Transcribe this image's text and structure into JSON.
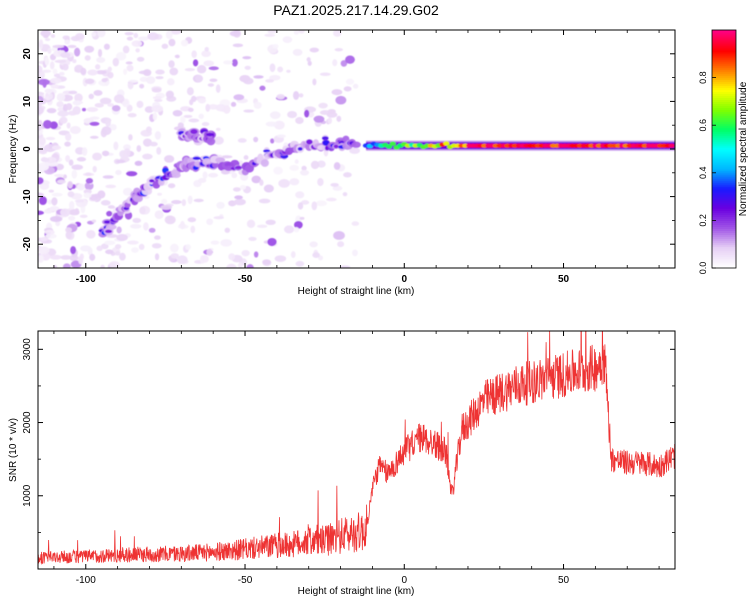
{
  "figure": {
    "title": "PAZ1.2025.217.14.29.G02"
  },
  "colorbar": {
    "label": "Normalized spectral amplitude",
    "ticks": [
      "0.0",
      "0.2",
      "0.4",
      "0.6",
      "0.8"
    ],
    "tick_values": [
      0.0,
      0.2,
      0.4,
      0.6,
      0.8
    ],
    "range": [
      0,
      1
    ],
    "colormap": [
      "#ffffff",
      "#e6cff5",
      "#a055e6",
      "#6a00e0",
      "#1a1aff",
      "#00b7ff",
      "#00ffff",
      "#00ff66",
      "#7fff00",
      "#ffff00",
      "#ff8000",
      "#ff0000",
      "#ff0080"
    ]
  },
  "chart_data": [
    {
      "type": "heatmap",
      "title": "",
      "xlabel": "Height of straight line (km)",
      "ylabel": "Frequency (Hz)",
      "xlim": [
        -115,
        85
      ],
      "ylim": [
        -25,
        25
      ],
      "xticks": [
        -100,
        -50,
        0,
        50
      ],
      "xtick_labels": [
        "-100",
        "-50",
        "0",
        "50"
      ],
      "yticks": [
        -20,
        -10,
        0,
        10,
        20
      ],
      "ytick_labels": [
        "-20",
        "-10",
        "0",
        "10",
        "20"
      ],
      "grid": false,
      "features": [
        {
          "name": "carrier_line",
          "x_range": [
            -12,
            85
          ],
          "frequency": 0.7,
          "amplitude_peak": 0.98
        },
        {
          "name": "descending_branch",
          "points": [
            [
              -95,
              -18
            ],
            [
              -88,
              -12
            ],
            [
              -82,
              -9
            ],
            [
              -75,
              -6
            ],
            [
              -68,
              -3
            ],
            [
              -60,
              -3
            ],
            [
              -50,
              -4
            ],
            [
              -42,
              -1
            ],
            [
              -35,
              0
            ],
            [
              -25,
              1
            ],
            [
              -15,
              1
            ]
          ],
          "amplitude_peak": 0.35
        },
        {
          "name": "plateau_segment",
          "points": [
            [
              -70,
              3
            ],
            [
              -65,
              2.5
            ],
            [
              -60,
              2.5
            ]
          ],
          "amplitude_peak": 0.3
        },
        {
          "name": "scatter_noise",
          "x_range": [
            -115,
            -15
          ],
          "y_range": [
            -25,
            25
          ],
          "amplitude_peak": 0.15
        }
      ]
    },
    {
      "type": "line",
      "title": "",
      "xlabel": "Height of straight line (km)",
      "ylabel": "SNR (10 * v/v)",
      "xlim": [
        -115,
        85
      ],
      "ylim": [
        0,
        3250
      ],
      "xticks": [
        -100,
        -50,
        0,
        50
      ],
      "xtick_labels": [
        "-100",
        "-50",
        "0",
        "50"
      ],
      "yticks": [
        1000,
        2000,
        3000
      ],
      "ytick_labels": [
        "1000",
        "2000",
        "3000"
      ],
      "grid": false,
      "color": "#ee3333",
      "series": [
        {
          "x": [
            -115,
            -110,
            -100,
            -90,
            -80,
            -70,
            -60,
            -50,
            -40,
            -35,
            -30,
            -25,
            -20,
            -15,
            -12,
            -10,
            -8,
            -5,
            0,
            5,
            10,
            13,
            15,
            18,
            20,
            25,
            30,
            35,
            40,
            45,
            50,
            55,
            60,
            62,
            63,
            65,
            70,
            75,
            80,
            85
          ],
          "values": [
            150,
            160,
            170,
            190,
            200,
            210,
            230,
            270,
            320,
            330,
            400,
            380,
            450,
            500,
            520,
            1100,
            1400,
            1300,
            1600,
            1800,
            1700,
            1600,
            1000,
            1900,
            2000,
            2300,
            2400,
            2500,
            2550,
            2600,
            2650,
            2700,
            2750,
            2850,
            2850,
            1500,
            1450,
            1450,
            1400,
            1550
          ]
        }
      ]
    }
  ]
}
